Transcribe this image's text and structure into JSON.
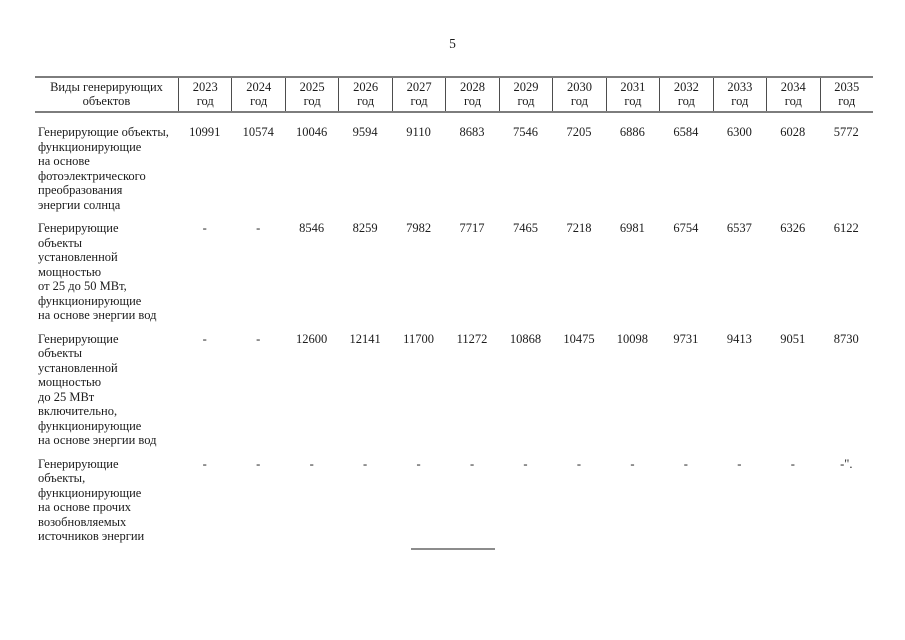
{
  "page_number": "5",
  "table": {
    "header": {
      "label": "Виды генерирующих\nобъектов",
      "year_unit": "год",
      "years": [
        "2023",
        "2024",
        "2025",
        "2026",
        "2027",
        "2028",
        "2029",
        "2030",
        "2031",
        "2032",
        "2033",
        "2034",
        "2035"
      ]
    },
    "rows": [
      {
        "label": "Генерирующие объекты,\nфункционирующие\nна основе\nфотоэлектрического\nпреобразования\nэнергии солнца",
        "values": [
          "10991",
          "10574",
          "10046",
          "9594",
          "9110",
          "8683",
          "7546",
          "7205",
          "6886",
          "6584",
          "6300",
          "6028",
          "5772"
        ]
      },
      {
        "label": "Генерирующие\nобъекты\nустановленной\nмощностью\nот 25 до 50 МВт,\nфункционирующие\nна основе энергии вод",
        "values": [
          "-",
          "-",
          "8546",
          "8259",
          "7982",
          "7717",
          "7465",
          "7218",
          "6981",
          "6754",
          "6537",
          "6326",
          "6122"
        ]
      },
      {
        "label": "Генерирующие\nобъекты\nустановленной\nмощностью\nдо 25 МВт\nвключительно,\nфункционирующие\nна основе энергии вод",
        "values": [
          "-",
          "-",
          "12600",
          "12141",
          "11700",
          "11272",
          "10868",
          "10475",
          "10098",
          "9731",
          "9413",
          "9051",
          "8730"
        ]
      },
      {
        "label": "Генерирующие\nобъекты,\nфункционирующие\nна основе прочих\nвозобновляемых\nисточников энергии",
        "values": [
          "-",
          "-",
          "-",
          "-",
          "-",
          "-",
          "-",
          "-",
          "-",
          "-",
          "-",
          "-",
          "-\"."
        ]
      }
    ]
  }
}
